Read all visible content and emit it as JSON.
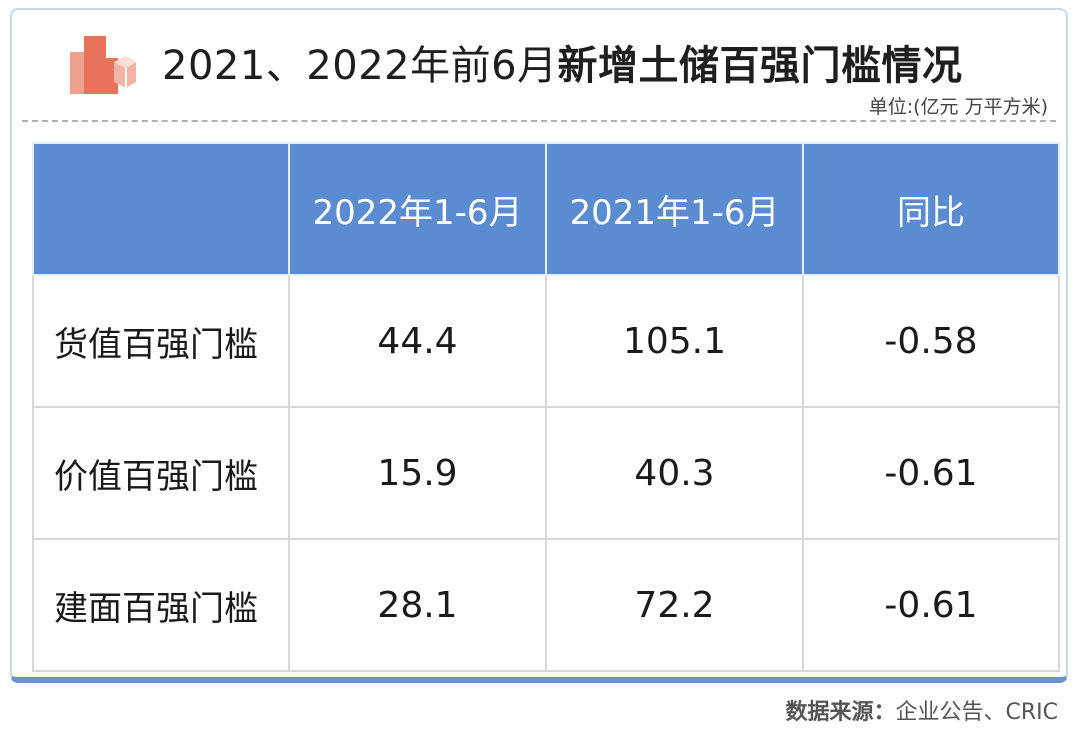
{
  "header": {
    "title_regular": "2021、2022年前6月",
    "title_bold": "新增土储百强门槛情况",
    "unit": "单位:(亿元 万平方米)",
    "logo_icon": "building-icon"
  },
  "table": {
    "columns": [
      "",
      "2022年1-6月",
      "2021年1-6月",
      "同比"
    ],
    "rows": [
      {
        "label": "货值百强门槛",
        "v2022": "44.4",
        "v2021": "105.1",
        "yoy": "-0.58"
      },
      {
        "label": "价值百强门槛",
        "v2022": "15.9",
        "v2021": "40.3",
        "yoy": "-0.61"
      },
      {
        "label": "建面百强门槛",
        "v2022": "28.1",
        "v2021": "72.2",
        "yoy": "-0.61"
      }
    ]
  },
  "footer": {
    "source_label": "数据来源：",
    "source_value": "企业公告、CRIC"
  },
  "colors": {
    "header_fill": "#5b8bd0",
    "logo": "#e8735a",
    "frame_border": "#6e93c8"
  }
}
